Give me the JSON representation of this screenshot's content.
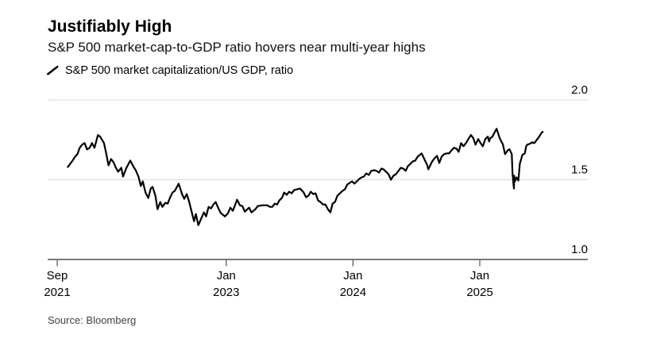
{
  "header": {
    "title": "Justifiably High",
    "subtitle": "S&P 500 market-cap-to-GDP ratio hovers near multi-year highs"
  },
  "legend": {
    "marker": "diagonal-line-swatch",
    "label": "S&P 500 market capitalization/US GDP, ratio"
  },
  "source": {
    "text": "Source: Bloomberg"
  },
  "colors": {
    "background": "#ffffff",
    "line": "#000000",
    "gridline": "#d9d9d9",
    "axis": "#4d4d4d",
    "text": "#000000"
  },
  "chart_data": {
    "type": "line",
    "title": "Justifiably High",
    "subtitle": "S&P 500 market-cap-to-GDP ratio hovers near multi-year highs",
    "series_name": "S&P 500 market capitalization/US GDP, ratio",
    "grid": "horizontal-only",
    "legend_position": "top-left",
    "x_range": [
      "2021-10-01",
      "2025-06-30"
    ],
    "ylim": [
      0.95,
      2.05
    ],
    "yticks": [
      {
        "label": "2.0",
        "value": 2.0
      },
      {
        "label": "1.5",
        "value": 1.5
      },
      {
        "label": "1.0",
        "value": 1.0
      }
    ],
    "xticks": [
      {
        "month": "Sep",
        "year": "2021",
        "date": "2021-09-01"
      },
      {
        "month": "Jan",
        "year": "2023",
        "date": "2023-01-01"
      },
      {
        "month": "Jan",
        "year": "2024",
        "date": "2024-01-01"
      },
      {
        "month": "Jan",
        "year": "2025",
        "date": "2025-01-01"
      }
    ],
    "points": [
      [
        "2021-10-01",
        1.58
      ],
      [
        "2021-10-08",
        1.6
      ],
      [
        "2021-10-15",
        1.62
      ],
      [
        "2021-10-22",
        1.645
      ],
      [
        "2021-10-29",
        1.66
      ],
      [
        "2021-11-05",
        1.7
      ],
      [
        "2021-11-12",
        1.72
      ],
      [
        "2021-11-19",
        1.73
      ],
      [
        "2021-11-26",
        1.69
      ],
      [
        "2021-12-03",
        1.7
      ],
      [
        "2021-12-10",
        1.73
      ],
      [
        "2021-12-17",
        1.7
      ],
      [
        "2021-12-27",
        1.78
      ],
      [
        "2022-01-03",
        1.77
      ],
      [
        "2022-01-14",
        1.73
      ],
      [
        "2022-01-21",
        1.66
      ],
      [
        "2022-01-27",
        1.59
      ],
      [
        "2022-02-04",
        1.63
      ],
      [
        "2022-02-11",
        1.61
      ],
      [
        "2022-02-18",
        1.575
      ],
      [
        "2022-02-24",
        1.55
      ],
      [
        "2022-03-03",
        1.575
      ],
      [
        "2022-03-08",
        1.52
      ],
      [
        "2022-03-18",
        1.575
      ],
      [
        "2022-03-29",
        1.62
      ],
      [
        "2022-04-08",
        1.58
      ],
      [
        "2022-04-14",
        1.56
      ],
      [
        "2022-04-22",
        1.52
      ],
      [
        "2022-04-29",
        1.46
      ],
      [
        "2022-05-04",
        1.49
      ],
      [
        "2022-05-12",
        1.42
      ],
      [
        "2022-05-20",
        1.385
      ],
      [
        "2022-05-27",
        1.445
      ],
      [
        "2022-06-02",
        1.455
      ],
      [
        "2022-06-10",
        1.4
      ],
      [
        "2022-06-16",
        1.315
      ],
      [
        "2022-06-24",
        1.36
      ],
      [
        "2022-06-30",
        1.33
      ],
      [
        "2022-07-08",
        1.355
      ],
      [
        "2022-07-15",
        1.35
      ],
      [
        "2022-07-22",
        1.39
      ],
      [
        "2022-07-29",
        1.42
      ],
      [
        "2022-08-05",
        1.43
      ],
      [
        "2022-08-16",
        1.475
      ],
      [
        "2022-08-26",
        1.41
      ],
      [
        "2022-09-02",
        1.38
      ],
      [
        "2022-09-09",
        1.41
      ],
      [
        "2022-09-16",
        1.36
      ],
      [
        "2022-09-23",
        1.3
      ],
      [
        "2022-09-30",
        1.24
      ],
      [
        "2022-10-05",
        1.285
      ],
      [
        "2022-10-12",
        1.215
      ],
      [
        "2022-10-21",
        1.26
      ],
      [
        "2022-10-28",
        1.295
      ],
      [
        "2022-11-04",
        1.27
      ],
      [
        "2022-11-11",
        1.33
      ],
      [
        "2022-11-18",
        1.32
      ],
      [
        "2022-11-25",
        1.345
      ],
      [
        "2022-12-01",
        1.36
      ],
      [
        "2022-12-09",
        1.32
      ],
      [
        "2022-12-16",
        1.29
      ],
      [
        "2022-12-28",
        1.27
      ],
      [
        "2023-01-06",
        1.29
      ],
      [
        "2023-01-13",
        1.325
      ],
      [
        "2023-01-20",
        1.305
      ],
      [
        "2023-01-27",
        1.345
      ],
      [
        "2023-02-02",
        1.375
      ],
      [
        "2023-02-10",
        1.34
      ],
      [
        "2023-02-17",
        1.335
      ],
      [
        "2023-02-24",
        1.3
      ],
      [
        "2023-03-06",
        1.325
      ],
      [
        "2023-03-13",
        1.295
      ],
      [
        "2023-03-24",
        1.315
      ],
      [
        "2023-03-31",
        1.335
      ],
      [
        "2023-04-14",
        1.34
      ],
      [
        "2023-04-28",
        1.34
      ],
      [
        "2023-05-05",
        1.33
      ],
      [
        "2023-05-12",
        1.33
      ],
      [
        "2023-05-19",
        1.35
      ],
      [
        "2023-05-26",
        1.345
      ],
      [
        "2023-06-02",
        1.37
      ],
      [
        "2023-06-09",
        1.385
      ],
      [
        "2023-06-16",
        1.42
      ],
      [
        "2023-06-23",
        1.405
      ],
      [
        "2023-06-30",
        1.425
      ],
      [
        "2023-07-07",
        1.415
      ],
      [
        "2023-07-14",
        1.435
      ],
      [
        "2023-07-31",
        1.445
      ],
      [
        "2023-08-11",
        1.42
      ],
      [
        "2023-08-18",
        1.39
      ],
      [
        "2023-08-25",
        1.4
      ],
      [
        "2023-09-01",
        1.425
      ],
      [
        "2023-09-08",
        1.41
      ],
      [
        "2023-09-15",
        1.415
      ],
      [
        "2023-09-22",
        1.37
      ],
      [
        "2023-09-29",
        1.36
      ],
      [
        "2023-10-06",
        1.345
      ],
      [
        "2023-10-13",
        1.345
      ],
      [
        "2023-10-20",
        1.315
      ],
      [
        "2023-10-27",
        1.295
      ],
      [
        "2023-11-03",
        1.35
      ],
      [
        "2023-11-10",
        1.36
      ],
      [
        "2023-11-17",
        1.4
      ],
      [
        "2023-11-24",
        1.415
      ],
      [
        "2023-12-01",
        1.43
      ],
      [
        "2023-12-08",
        1.44
      ],
      [
        "2023-12-15",
        1.47
      ],
      [
        "2023-12-29",
        1.49
      ],
      [
        "2024-01-05",
        1.475
      ],
      [
        "2024-01-12",
        1.49
      ],
      [
        "2024-01-19",
        1.505
      ],
      [
        "2024-01-26",
        1.515
      ],
      [
        "2024-02-02",
        1.52
      ],
      [
        "2024-02-09",
        1.54
      ],
      [
        "2024-02-16",
        1.53
      ],
      [
        "2024-02-23",
        1.555
      ],
      [
        "2024-03-01",
        1.56
      ],
      [
        "2024-03-08",
        1.555
      ],
      [
        "2024-03-15",
        1.545
      ],
      [
        "2024-03-22",
        1.57
      ],
      [
        "2024-03-28",
        1.565
      ],
      [
        "2024-04-05",
        1.55
      ],
      [
        "2024-04-12",
        1.535
      ],
      [
        "2024-04-19",
        1.5
      ],
      [
        "2024-04-26",
        1.525
      ],
      [
        "2024-05-03",
        1.535
      ],
      [
        "2024-05-10",
        1.555
      ],
      [
        "2024-05-17",
        1.575
      ],
      [
        "2024-05-24",
        1.57
      ],
      [
        "2024-05-31",
        1.555
      ],
      [
        "2024-06-07",
        1.585
      ],
      [
        "2024-06-14",
        1.6
      ],
      [
        "2024-06-21",
        1.615
      ],
      [
        "2024-06-28",
        1.62
      ],
      [
        "2024-07-05",
        1.645
      ],
      [
        "2024-07-16",
        1.665
      ],
      [
        "2024-07-26",
        1.62
      ],
      [
        "2024-08-02",
        1.59
      ],
      [
        "2024-08-05",
        1.565
      ],
      [
        "2024-08-16",
        1.615
      ],
      [
        "2024-08-23",
        1.635
      ],
      [
        "2024-08-30",
        1.65
      ],
      [
        "2024-09-06",
        1.605
      ],
      [
        "2024-09-13",
        1.645
      ],
      [
        "2024-09-20",
        1.66
      ],
      [
        "2024-09-27",
        1.665
      ],
      [
        "2024-10-04",
        1.665
      ],
      [
        "2024-10-11",
        1.685
      ],
      [
        "2024-10-18",
        1.7
      ],
      [
        "2024-10-25",
        1.695
      ],
      [
        "2024-11-01",
        1.675
      ],
      [
        "2024-11-08",
        1.73
      ],
      [
        "2024-11-15",
        1.71
      ],
      [
        "2024-11-22",
        1.73
      ],
      [
        "2024-11-29",
        1.755
      ],
      [
        "2024-12-06",
        1.78
      ],
      [
        "2024-12-13",
        1.76
      ],
      [
        "2024-12-19",
        1.72
      ],
      [
        "2024-12-27",
        1.755
      ],
      [
        "2025-01-03",
        1.73
      ],
      [
        "2025-01-10",
        1.71
      ],
      [
        "2025-01-17",
        1.755
      ],
      [
        "2025-01-24",
        1.77
      ],
      [
        "2025-01-28",
        1.74
      ],
      [
        "2025-01-31",
        1.76
      ],
      [
        "2025-02-07",
        1.77
      ],
      [
        "2025-02-14",
        1.8
      ],
      [
        "2025-02-19",
        1.82
      ],
      [
        "2025-02-28",
        1.76
      ],
      [
        "2025-03-07",
        1.72
      ],
      [
        "2025-03-13",
        1.66
      ],
      [
        "2025-03-21",
        1.685
      ],
      [
        "2025-03-26",
        1.69
      ],
      [
        "2025-04-02",
        1.66
      ],
      [
        "2025-04-04",
        1.54
      ],
      [
        "2025-04-08",
        1.445
      ],
      [
        "2025-04-09",
        1.525
      ],
      [
        "2025-04-11",
        1.49
      ],
      [
        "2025-04-16",
        1.515
      ],
      [
        "2025-04-21",
        1.495
      ],
      [
        "2025-04-25",
        1.6
      ],
      [
        "2025-05-02",
        1.655
      ],
      [
        "2025-05-09",
        1.665
      ],
      [
        "2025-05-13",
        1.71
      ],
      [
        "2025-05-16",
        1.72
      ],
      [
        "2025-05-23",
        1.725
      ],
      [
        "2025-05-30",
        1.735
      ],
      [
        "2025-06-06",
        1.73
      ],
      [
        "2025-06-13",
        1.75
      ],
      [
        "2025-06-20",
        1.77
      ],
      [
        "2025-06-27",
        1.795
      ],
      [
        "2025-06-30",
        1.8
      ]
    ]
  }
}
